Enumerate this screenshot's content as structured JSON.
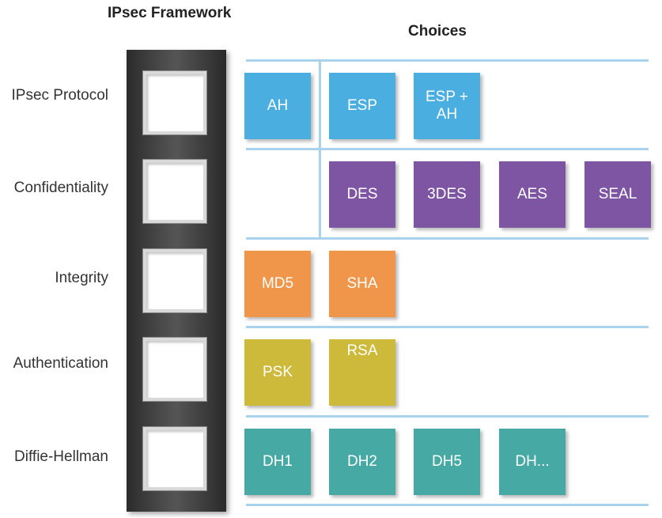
{
  "title": "IPsec Framework",
  "choices_heading": "Choices",
  "colors": {
    "protocol": "#4aaee0",
    "confidentiality": "#7e55a3",
    "integrity": "#f0964a",
    "authentication": "#cdb93a",
    "diffie_hellman": "#46a9a4",
    "guide_line": "#a9d3ea"
  },
  "rows": [
    {
      "label": "IPsec Protocol",
      "color": "#4aaee0",
      "choices": [
        "AH",
        "ESP",
        "ESP +\nAH"
      ]
    },
    {
      "label": "Confidentiality",
      "color": "#7e55a3",
      "choices": [
        "DES",
        "3DES",
        "AES",
        "SEAL"
      ]
    },
    {
      "label": "Integrity",
      "color": "#f0964a",
      "choices": [
        "MD5",
        "SHA"
      ]
    },
    {
      "label": "Authentication",
      "color": "#cdb93a",
      "choices": [
        "PSK",
        "RSA"
      ]
    },
    {
      "label": "Diffie-Hellman",
      "color": "#46a9a4",
      "choices": [
        "DH1",
        "DH2",
        "DH5",
        "DH..."
      ]
    }
  ]
}
